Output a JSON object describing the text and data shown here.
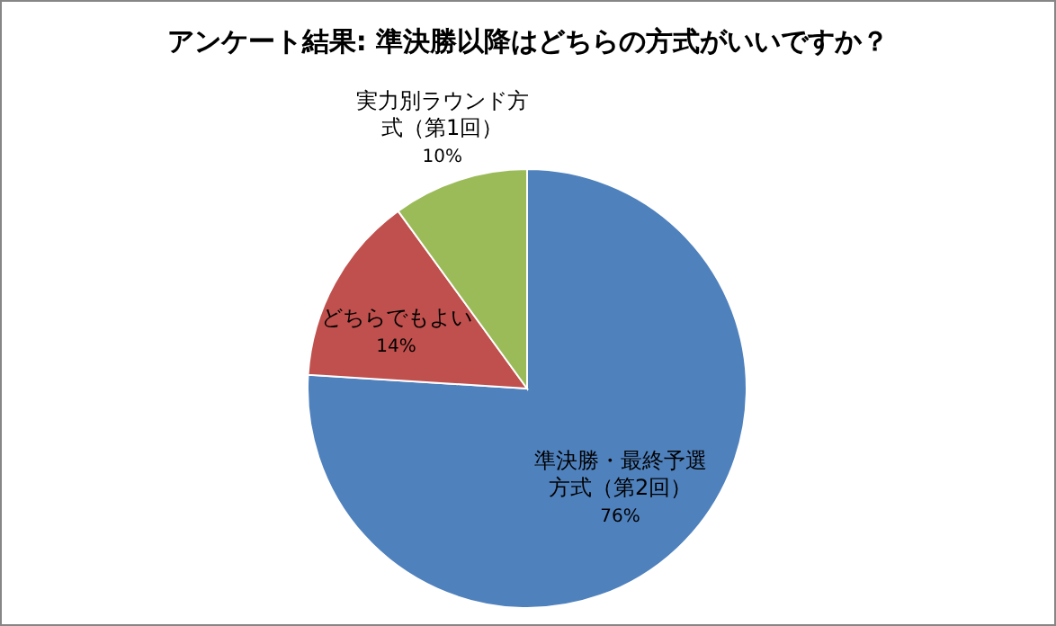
{
  "chart_data": {
    "type": "pie",
    "title": "アンケート結果: 準決勝以降はどちらの方式がいいですか？",
    "categories": [
      "準決勝・最終予選方式（第2回）",
      "どちらでもよい",
      "実力別ラウンド方式（第1回）"
    ],
    "values": [
      76,
      14,
      10
    ],
    "value_labels": [
      "76%",
      "14%",
      "10%"
    ],
    "colors": [
      "#4f81bd",
      "#c0504d",
      "#9bbb59"
    ]
  }
}
